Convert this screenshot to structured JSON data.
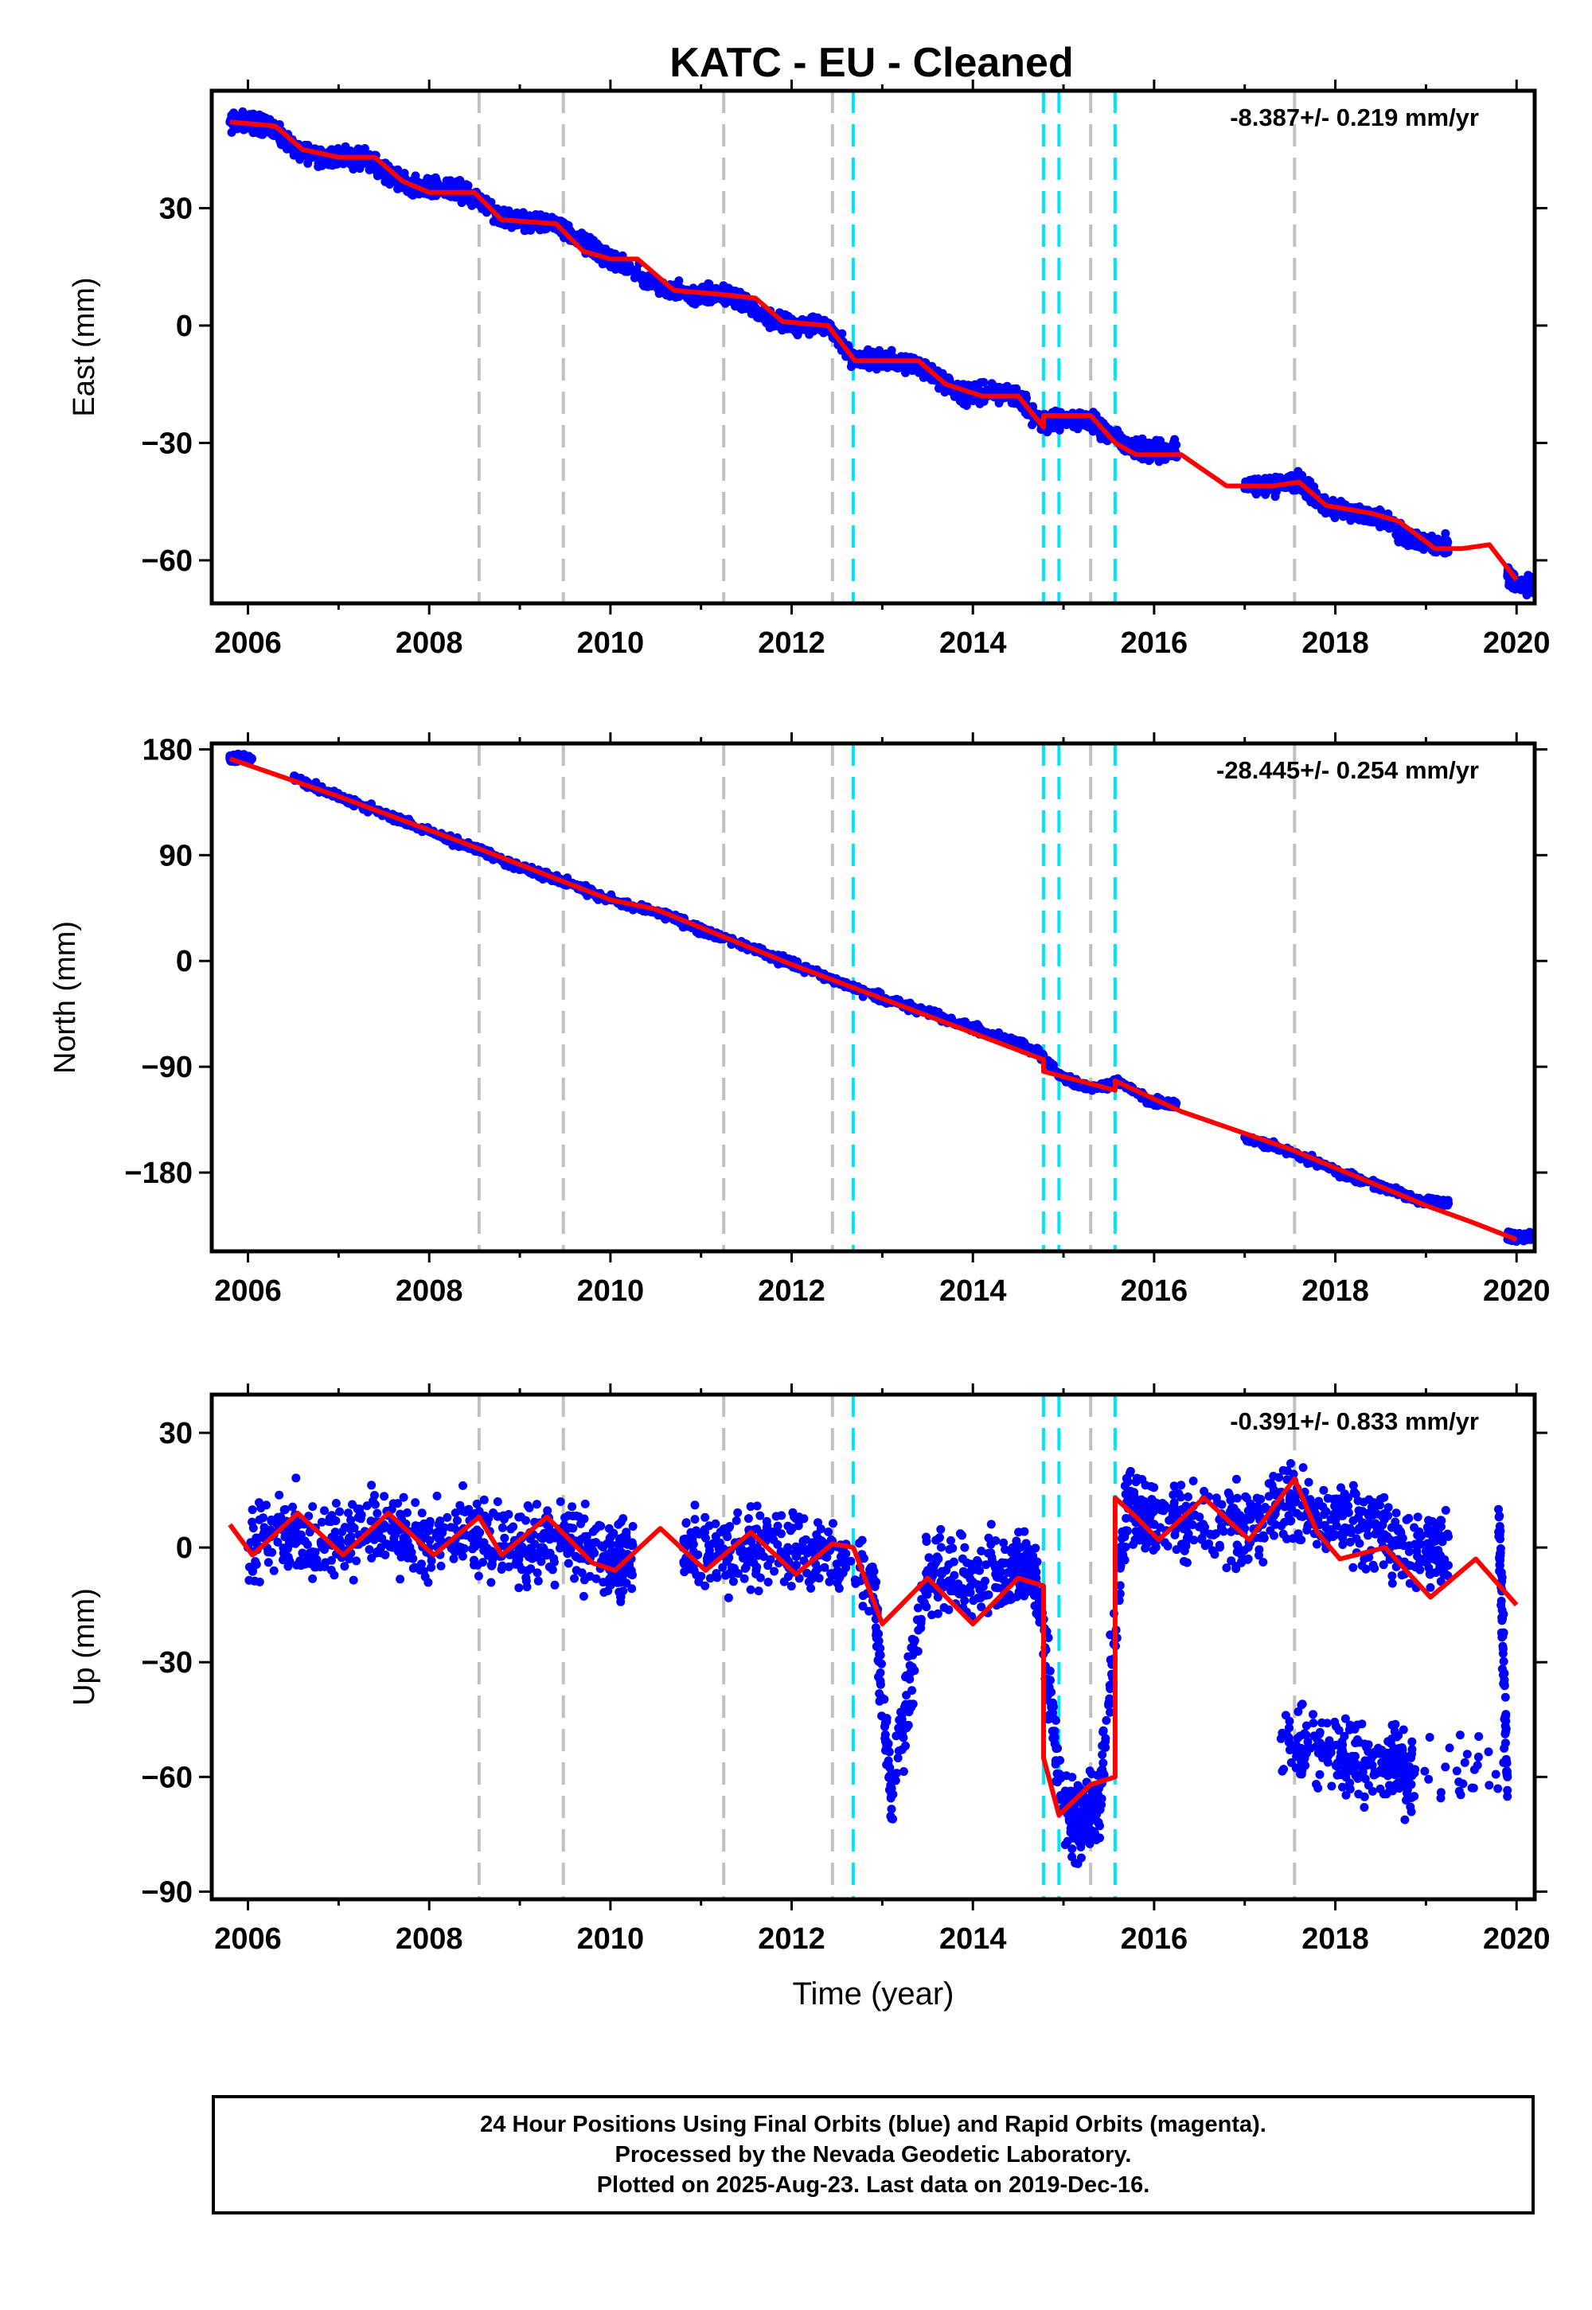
{
  "title": "KATC  - EU - Cleaned",
  "colors": {
    "final_orbits": "#0000ff",
    "model_fit": "#ff0000",
    "equipment_change_line": "#c0c0c0",
    "earthquake_line": "#00e5ff",
    "frame": "#000000"
  },
  "footer": {
    "line1": "24 Hour Positions Using Final Orbits (blue) and Rapid Orbits (magenta).",
    "line2": "Processed by the Nevada Geodetic Laboratory.",
    "line3": "Plotted on 2025-Aug-23. Last data on 2019-Dec-16."
  },
  "chart_data": [
    {
      "type": "scatter",
      "panel": "east",
      "ylabel": "East (mm)",
      "xlabel": "",
      "rate_label": "-8.387+/- 0.219 mm/yr",
      "xlim": [
        2005.6,
        2020.2
      ],
      "ylim": [
        -71,
        60
      ],
      "xticks": [
        2006,
        2008,
        2010,
        2012,
        2014,
        2016,
        2018,
        2020
      ],
      "yticks": [
        -60,
        -30,
        0,
        30
      ],
      "ytick_labels": [
        "−60",
        "−30",
        "0",
        "30"
      ],
      "vlines_gray": [
        2008.55,
        2009.48,
        2011.25,
        2012.45,
        2015.3,
        2017.55
      ],
      "vlines_cyan": [
        2012.68,
        2014.78,
        2014.95,
        2015.57
      ],
      "series": [
        {
          "kind": "points",
          "x": [
            2005.8,
            2006.0,
            2006.2,
            2006.5,
            2006.8,
            2007.0,
            2007.3,
            2007.6,
            2007.9,
            2008.2,
            2008.5,
            2008.8,
            2009.1,
            2009.4,
            2009.7,
            2010.0,
            2010.6,
            2010.9,
            2011.2,
            2011.5,
            2011.8,
            2012.1,
            2012.4,
            2012.7,
            2013.0,
            2013.3,
            2013.6,
            2013.9,
            2014.2,
            2014.5,
            2014.75,
            2015.0,
            2015.3,
            2015.5,
            2015.8,
            2016.0,
            2017.0,
            2017.3,
            2017.6,
            2017.9,
            2018.2,
            2018.5,
            2018.8,
            2019.0,
            2019.9,
            2020.0
          ],
          "y": [
            52,
            52,
            51,
            46,
            43,
            43,
            43,
            38,
            35,
            35,
            33,
            27,
            26,
            26,
            21,
            17,
            9,
            8,
            8,
            6,
            1,
            0,
            0,
            -9,
            -9,
            -9,
            -13,
            -18,
            -17,
            -18,
            -25,
            -24,
            -24,
            -28,
            -32,
            -32,
            -41,
            -41,
            -40,
            -46,
            -48,
            -49,
            -54,
            -56,
            -64,
            -66
          ]
        },
        {
          "kind": "fit",
          "x": [
            2005.8,
            2006.3,
            2006.6,
            2007.0,
            2007.4,
            2007.7,
            2008.0,
            2008.5,
            2008.8,
            2009.4,
            2009.7,
            2010.0,
            2010.3,
            2010.7,
            2011.2,
            2011.6,
            2011.9,
            2012.4,
            2012.7,
            2013.1,
            2013.4,
            2013.7,
            2014.1,
            2014.5,
            2014.78,
            2014.78,
            2015.3,
            2015.57,
            2015.8,
            2016.3,
            2016.8,
            2017.3,
            2017.6,
            2017.9,
            2018.4,
            2018.7,
            2019.1,
            2019.4,
            2019.7,
            2020.0
          ],
          "y": [
            52,
            51,
            45,
            43,
            43,
            37,
            34,
            34,
            27,
            26,
            19,
            17,
            17,
            9,
            8,
            7,
            1,
            0,
            -9,
            -9,
            -9,
            -15,
            -18,
            -18,
            -26,
            -23,
            -23,
            -30,
            -33,
            -33,
            -41,
            -41,
            -40,
            -46,
            -48,
            -50,
            -57,
            -57,
            -56,
            -65
          ]
        }
      ]
    },
    {
      "type": "scatter",
      "panel": "north",
      "ylabel": "North (mm)",
      "xlabel": "",
      "rate_label": "-28.445+/- 0.254 mm/yr",
      "xlim": [
        2005.6,
        2020.2
      ],
      "ylim": [
        -247,
        185
      ],
      "xticks": [
        2006,
        2008,
        2010,
        2012,
        2014,
        2016,
        2018,
        2020
      ],
      "yticks": [
        -180,
        -90,
        0,
        90,
        180
      ],
      "ytick_labels": [
        "−180",
        "−90",
        "0",
        "90",
        "180"
      ],
      "vlines_gray": [
        2008.55,
        2009.48,
        2011.25,
        2012.45,
        2015.3,
        2017.55
      ],
      "vlines_cyan": [
        2012.68,
        2014.78,
        2014.95,
        2015.57
      ],
      "series": [
        {
          "kind": "points",
          "x": [
            2005.8,
            2006.5,
            2007.0,
            2007.5,
            2008.0,
            2008.5,
            2009.0,
            2009.5,
            2010.0,
            2010.6,
            2011.0,
            2011.5,
            2012.0,
            2012.5,
            2013.0,
            2013.5,
            2014.0,
            2014.5,
            2014.75,
            2015.0,
            2015.3,
            2015.6,
            2016.0,
            2017.0,
            2017.5,
            2018.0,
            2018.5,
            2019.0,
            2019.9,
            2020.0
          ],
          "y": [
            172,
            155,
            140,
            125,
            110,
            96,
            80,
            67,
            52,
            40,
            26,
            12,
            -2,
            -17,
            -32,
            -44,
            -57,
            -70,
            -80,
            -100,
            -108,
            -103,
            -121,
            -150,
            -162,
            -179,
            -192,
            -205,
            -233,
            -235
          ]
        },
        {
          "kind": "fit",
          "x": [
            2005.8,
            2007.0,
            2008.5,
            2009.5,
            2010.0,
            2010.5,
            2012.0,
            2013.0,
            2014.78,
            2014.78,
            2015.57,
            2015.57,
            2016.3,
            2017.5,
            2019.0,
            2019.5,
            2020.0
          ],
          "y": [
            172,
            140,
            97,
            67,
            52,
            44,
            -3,
            -32,
            -84,
            -94,
            -110,
            -102,
            -128,
            -160,
            -208,
            -222,
            -237
          ]
        }
      ]
    },
    {
      "type": "scatter",
      "panel": "up",
      "ylabel": "Up (mm)",
      "xlabel": "Time (year)",
      "rate_label": "-0.391+/- 0.833 mm/yr",
      "xlim": [
        2005.6,
        2020.2
      ],
      "ylim": [
        -92,
        40
      ],
      "xticks": [
        2006,
        2008,
        2010,
        2012,
        2014,
        2016,
        2018,
        2020
      ],
      "yticks": [
        -90,
        -60,
        -30,
        0,
        30
      ],
      "ytick_labels": [
        "−90",
        "−60",
        "−30",
        "0",
        "30"
      ],
      "vlines_gray": [
        2008.55,
        2009.48,
        2011.25,
        2012.45,
        2015.3,
        2017.55
      ],
      "vlines_cyan": [
        2012.68,
        2014.78,
        2014.95,
        2015.57
      ],
      "series": [
        {
          "kind": "points",
          "x": [
            2006.0,
            2006.5,
            2007.0,
            2007.5,
            2008.0,
            2008.5,
            2009.0,
            2009.5,
            2010.0,
            2010.8,
            2011.3,
            2011.8,
            2012.3,
            2012.9,
            2013.1,
            2013.5,
            2014.0,
            2014.5,
            2014.7,
            2015.0,
            2015.2,
            2015.4,
            2015.7,
            2016.0,
            2016.5,
            2017.0,
            2017.5,
            2018.0,
            2018.5,
            2019.0,
            2019.8,
            2019.9,
            2017.4,
            2018.1,
            2018.6
          ],
          "y": [
            0,
            5,
            2,
            6,
            0,
            4,
            -2,
            3,
            -3,
            0,
            -3,
            2,
            -2,
            -8,
            -65,
            -6,
            -9,
            -4,
            -8,
            -68,
            -72,
            -66,
            12,
            6,
            8,
            5,
            12,
            7,
            4,
            -1,
            10,
            -60,
            -50,
            -55,
            -58
          ]
        },
        {
          "kind": "fit",
          "x": [
            2005.8,
            2006.05,
            2006.55,
            2007.05,
            2007.55,
            2008.05,
            2008.55,
            2008.8,
            2009.3,
            2009.8,
            2010.05,
            2010.55,
            2011.05,
            2011.55,
            2012.05,
            2012.45,
            2012.68,
            2013.0,
            2013.5,
            2014.0,
            2014.5,
            2014.78,
            2014.78,
            2014.95,
            2015.3,
            2015.57,
            2015.57,
            2015.8,
            2016.05,
            2016.55,
            2017.05,
            2017.55,
            2017.8,
            2018.05,
            2018.55,
            2019.05,
            2019.55,
            2020.0
          ],
          "y": [
            6,
            -2,
            9,
            -2,
            9,
            -2,
            8,
            -2,
            8,
            -4,
            -6,
            5,
            -6,
            4,
            -7,
            1,
            0,
            -20,
            -8,
            -20,
            -8,
            -10,
            -55,
            -70,
            -62,
            -60,
            13,
            8,
            2,
            13,
            2,
            18,
            4,
            -3,
            0,
            -13,
            -3,
            -15
          ]
        }
      ]
    }
  ]
}
